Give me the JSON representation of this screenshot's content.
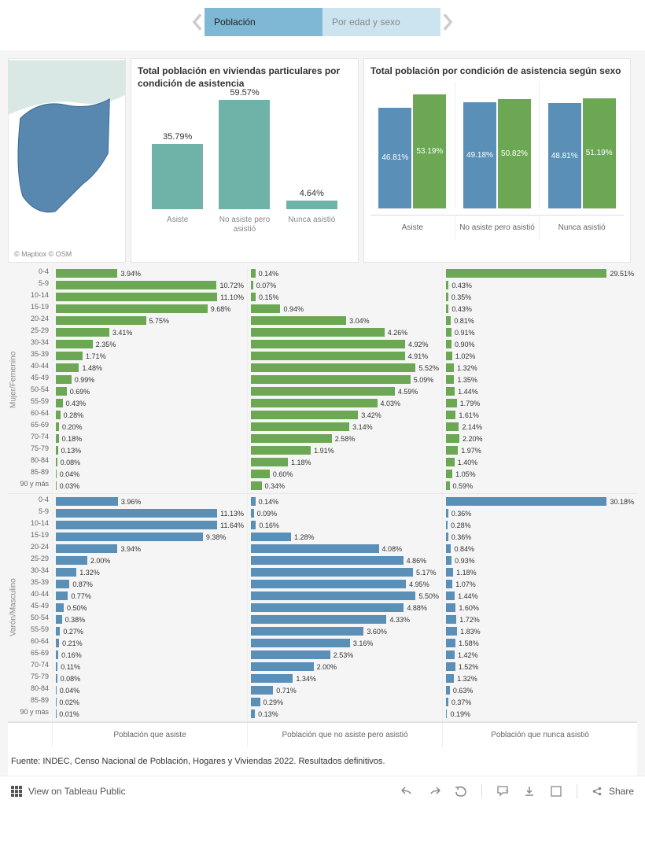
{
  "colors": {
    "teal": "#6fb3a8",
    "blue": "#5a8fb8",
    "green": "#6ca854",
    "gray_bg": "#f5f5f5",
    "map_land": "#d9e8e5",
    "map_region": "#5888b0"
  },
  "tabs": {
    "active": "Población",
    "inactive": "Por edad y sexo"
  },
  "map": {
    "credit": "© Mapbox  © OSM"
  },
  "chart1": {
    "title": "Total población en viviendas particulares por condición de asistencia",
    "max_pct": 60,
    "bars": [
      {
        "label": "Asiste",
        "value": 35.79,
        "pct": "35.79%"
      },
      {
        "label": "No asiste pero asistió",
        "value": 59.57,
        "pct": "59.57%"
      },
      {
        "label": "Nunca asistió",
        "value": 4.64,
        "pct": "4.64%"
      }
    ],
    "bar_color": "#6fb3a8"
  },
  "chart2": {
    "title": "Total población por condición de asistencia según sexo",
    "groups": [
      {
        "label": "Asiste",
        "m": 46.81,
        "f": 53.19,
        "m_pct": "46.81%",
        "f_pct": "53.19%"
      },
      {
        "label": "No asiste pero asistió",
        "m": 49.18,
        "f": 50.82,
        "m_pct": "49.18%",
        "f_pct": "50.82%"
      },
      {
        "label": "Nunca asistió",
        "m": 48.81,
        "f": 51.19,
        "m_pct": "48.81%",
        "f_pct": "51.19%"
      }
    ],
    "color_m": "#5a8fb8",
    "color_f": "#6ca854"
  },
  "age_chart": {
    "row_labels_f": "Mujer/Femenino",
    "row_labels_m": "Varón/Masculino",
    "age_groups": [
      "0-4",
      "5-9",
      "10-14",
      "15-19",
      "20-24",
      "25-29",
      "30-34",
      "35-39",
      "40-44",
      "45-49",
      "50-54",
      "55-59",
      "60-64",
      "65-69",
      "70-74",
      "75-79",
      "80-84",
      "85-89",
      "90 y más"
    ],
    "col_headers": [
      "Población que asiste",
      "Población que no asiste pero asistió",
      "Población que nunca asistió"
    ],
    "max_scale": [
      12,
      6,
      31
    ],
    "f": {
      "asiste": [
        "3.94%",
        "10.72%",
        "11.10%",
        "9.68%",
        "5.75%",
        "3.41%",
        "2.35%",
        "1.71%",
        "1.48%",
        "0.99%",
        "0.69%",
        "0.43%",
        "0.28%",
        "0.20%",
        "0.18%",
        "0.13%",
        "0.08%",
        "0.04%",
        "0.03%"
      ],
      "no_asiste": [
        "0.14%",
        "0.07%",
        "0.15%",
        "0.94%",
        "3.04%",
        "4.26%",
        "4.92%",
        "4.91%",
        "5.52%",
        "5.09%",
        "4.59%",
        "4.03%",
        "3.42%",
        "3.14%",
        "2.58%",
        "1.91%",
        "1.18%",
        "0.60%",
        "0.34%"
      ],
      "nunca": [
        "29.51%",
        "0.43%",
        "0.35%",
        "0.43%",
        "0.81%",
        "0.91%",
        "0.90%",
        "1.02%",
        "1.32%",
        "1.35%",
        "1.44%",
        "1.79%",
        "1.61%",
        "2.14%",
        "2.20%",
        "1.97%",
        "1.40%",
        "1.05%",
        "0.59%"
      ]
    },
    "m": {
      "asiste": [
        "3.96%",
        "11.13%",
        "11.64%",
        "9.38%",
        "3.94%",
        "2.00%",
        "1.32%",
        "0.87%",
        "0.77%",
        "0.50%",
        "0.38%",
        "0.27%",
        "0.21%",
        "0.16%",
        "0.11%",
        "0.08%",
        "0.04%",
        "0.02%",
        "0.01%"
      ],
      "no_asiste": [
        "0.14%",
        "0.09%",
        "0.16%",
        "1.28%",
        "4.08%",
        "4.86%",
        "5.17%",
        "4.95%",
        "5.50%",
        "4.88%",
        "4.33%",
        "3.60%",
        "3.16%",
        "2.53%",
        "2.00%",
        "1.34%",
        "0.71%",
        "0.29%",
        "0.13%"
      ],
      "nunca": [
        "30.18%",
        "0.36%",
        "0.28%",
        "0.36%",
        "0.84%",
        "0.93%",
        "1.18%",
        "1.07%",
        "1.44%",
        "1.60%",
        "1.72%",
        "1.83%",
        "1.58%",
        "1.42%",
        "1.52%",
        "1.32%",
        "0.63%",
        "0.37%",
        "0.19%"
      ]
    },
    "color_f": "#6ca854",
    "color_m": "#5a8fb8"
  },
  "source": "Fuente: INDEC, Censo Nacional de Población, Hogares y Viviendas 2022. Resultados definitivos.",
  "footer": {
    "view": "View on Tableau Public",
    "share": "Share"
  }
}
